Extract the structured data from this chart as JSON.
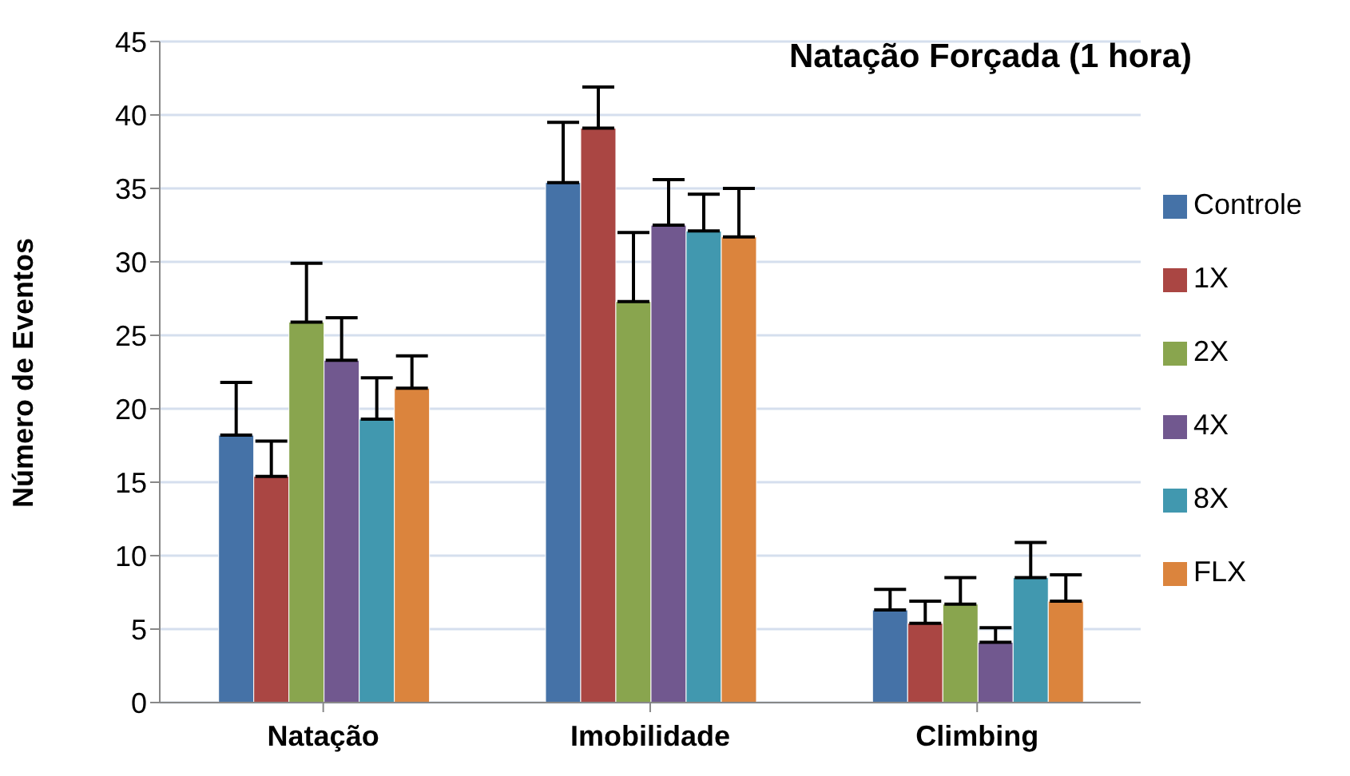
{
  "chart_data": {
    "type": "bar",
    "title": "Natação Forçada (1 hora)",
    "ylabel": "Número de Eventos",
    "categories": [
      "Natação",
      "Imobilidade",
      "Climbing"
    ],
    "series": [
      {
        "name": "Controle",
        "color": "#4572a7",
        "values": [
          18.2,
          35.4,
          6.3
        ],
        "errors": [
          [
            18.2,
            21.8
          ],
          [
            35.4,
            39.5
          ],
          [
            6.3,
            7.7
          ]
        ]
      },
      {
        "name": "1X",
        "color": "#aa4643",
        "values": [
          15.4,
          39.1,
          5.4
        ],
        "errors": [
          [
            15.4,
            17.8
          ],
          [
            39.1,
            41.9
          ],
          [
            5.4,
            6.9
          ]
        ]
      },
      {
        "name": "2X",
        "color": "#89a54e",
        "values": [
          25.9,
          27.3,
          6.7
        ],
        "errors": [
          [
            25.9,
            29.9
          ],
          [
            27.3,
            32.0
          ],
          [
            6.7,
            8.5
          ]
        ]
      },
      {
        "name": "4X",
        "color": "#71588f",
        "values": [
          23.3,
          32.5,
          4.1
        ],
        "errors": [
          [
            23.3,
            26.2
          ],
          [
            32.5,
            35.6
          ],
          [
            4.1,
            5.1
          ]
        ]
      },
      {
        "name": "8X",
        "color": "#4198af",
        "values": [
          19.3,
          32.1,
          8.5
        ],
        "errors": [
          [
            19.3,
            22.1
          ],
          [
            32.1,
            34.6
          ],
          [
            8.5,
            10.9
          ]
        ]
      },
      {
        "name": "FLX",
        "color": "#db843d",
        "values": [
          21.4,
          31.7,
          6.9
        ],
        "errors": [
          [
            21.4,
            23.6
          ],
          [
            31.7,
            35.0
          ],
          [
            6.9,
            8.7
          ]
        ]
      }
    ],
    "ylim": [
      0,
      45
    ],
    "yticks": [
      0,
      5,
      10,
      15,
      20,
      25,
      30,
      35,
      40,
      45
    ],
    "grid": "y",
    "legend": "right"
  }
}
